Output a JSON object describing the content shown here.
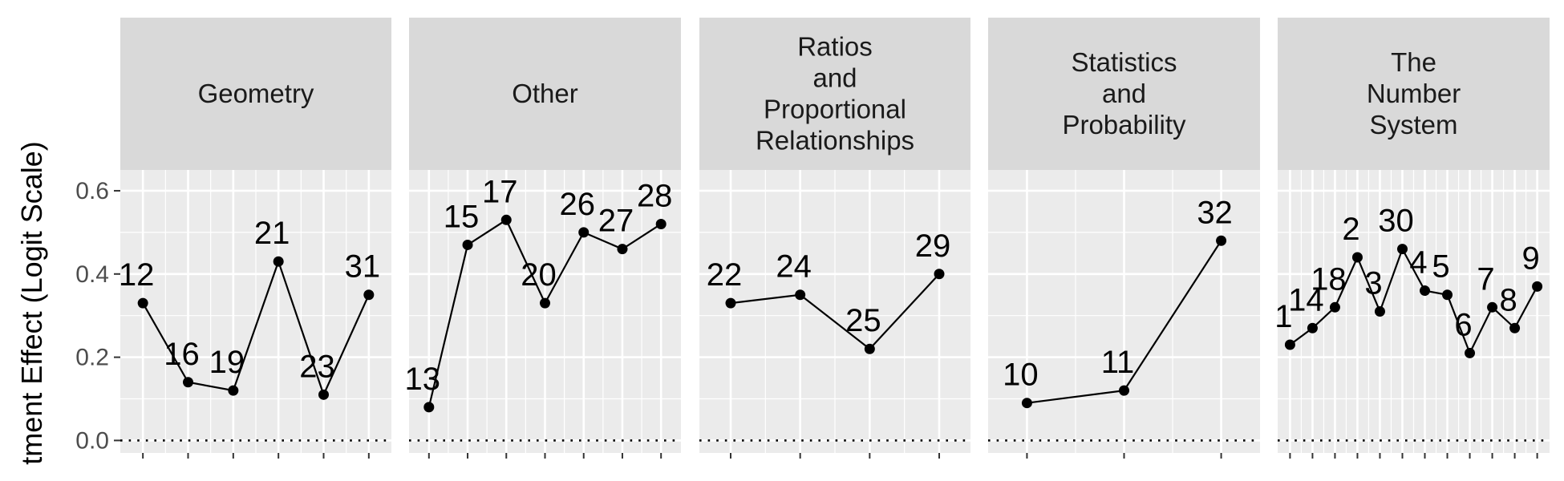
{
  "chart_data": {
    "type": "line",
    "ylabel": "tment Effect (Logit Scale)",
    "ylim": [
      -0.03,
      0.65
    ],
    "yticks": [
      0.0,
      0.2,
      0.4,
      0.6
    ],
    "ytick_labels": [
      "0.0",
      "0.2",
      "0.4",
      "0.6"
    ],
    "reference_line": 0.0,
    "grid": true,
    "colors": {
      "panel": "#ebebeb",
      "strip": "#d9d9d9",
      "grid": "#ffffff",
      "line": "#000000"
    },
    "panels": [
      {
        "title": [
          "Geometry"
        ],
        "points": [
          {
            "label": "12",
            "value": 0.33
          },
          {
            "label": "16",
            "value": 0.14
          },
          {
            "label": "19",
            "value": 0.12
          },
          {
            "label": "21",
            "value": 0.43
          },
          {
            "label": "23",
            "value": 0.11
          },
          {
            "label": "31",
            "value": 0.35
          }
        ]
      },
      {
        "title": [
          "Other"
        ],
        "points": [
          {
            "label": "13",
            "value": 0.08
          },
          {
            "label": "15",
            "value": 0.47
          },
          {
            "label": "17",
            "value": 0.53
          },
          {
            "label": "20",
            "value": 0.33
          },
          {
            "label": "26",
            "value": 0.5
          },
          {
            "label": "27",
            "value": 0.46
          },
          {
            "label": "28",
            "value": 0.52
          }
        ]
      },
      {
        "title": [
          "Ratios",
          "and",
          "Proportional",
          "Relationships"
        ],
        "points": [
          {
            "label": "22",
            "value": 0.33
          },
          {
            "label": "24",
            "value": 0.35
          },
          {
            "label": "25",
            "value": 0.22
          },
          {
            "label": "29",
            "value": 0.4
          }
        ]
      },
      {
        "title": [
          "Statistics",
          "and",
          "Probability"
        ],
        "points": [
          {
            "label": "10",
            "value": 0.09
          },
          {
            "label": "11",
            "value": 0.12
          },
          {
            "label": "32",
            "value": 0.48
          }
        ]
      },
      {
        "title": [
          "The",
          "Number",
          "System"
        ],
        "points": [
          {
            "label": "1",
            "value": 0.23
          },
          {
            "label": "14",
            "value": 0.27
          },
          {
            "label": "18",
            "value": 0.32
          },
          {
            "label": "2",
            "value": 0.44
          },
          {
            "label": "3",
            "value": 0.31
          },
          {
            "label": "30",
            "value": 0.46
          },
          {
            "label": "4",
            "value": 0.36
          },
          {
            "label": "5",
            "value": 0.35
          },
          {
            "label": "6",
            "value": 0.21
          },
          {
            "label": "7",
            "value": 0.32
          },
          {
            "label": "8",
            "value": 0.27
          },
          {
            "label": "9",
            "value": 0.37
          }
        ]
      }
    ]
  }
}
